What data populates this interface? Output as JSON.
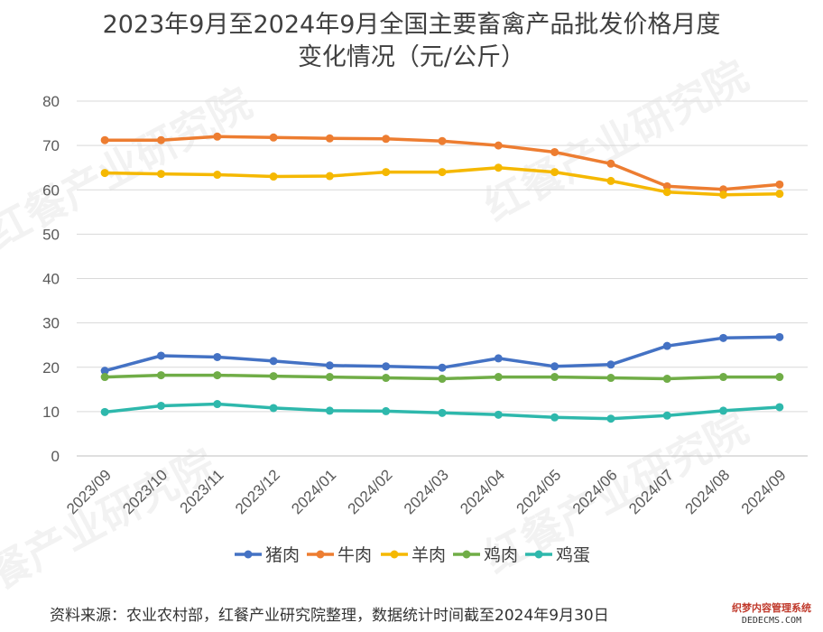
{
  "title": {
    "line1": "2023年9月至2024年9月全国主要畜禽产品批发价格月度",
    "line2": "变化情况（元/公斤）"
  },
  "source": "资料来源：农业农村部，红餐产业研究院整理，数据统计时间截至2024年9月30日",
  "watermark": {
    "text": "红餐产业研究院"
  },
  "corner_stamp": {
    "line1": "织梦内容管理系统",
    "line2": "DEDECMS.COM"
  },
  "chart_data": {
    "type": "line",
    "categories": [
      "2023/09",
      "2023/10",
      "2023/11",
      "2023/12",
      "2024/01",
      "2024/02",
      "2024/03",
      "2024/04",
      "2024/05",
      "2024/06",
      "2024/07",
      "2024/08",
      "2024/09"
    ],
    "ylim": [
      0,
      80
    ],
    "yticks": [
      0,
      10,
      20,
      30,
      40,
      50,
      60,
      70,
      80
    ],
    "grid": true,
    "legend_position": "bottom",
    "series": [
      {
        "name": "猪肉",
        "color": "#4472C4",
        "values": [
          19.2,
          22.6,
          22.3,
          21.4,
          20.4,
          20.2,
          19.9,
          22.0,
          20.2,
          20.6,
          24.8,
          26.6,
          26.8
        ]
      },
      {
        "name": "牛肉",
        "color": "#ED7D31",
        "values": [
          71.2,
          71.2,
          72.0,
          71.8,
          71.6,
          71.5,
          71.0,
          70.0,
          68.5,
          65.9,
          60.8,
          60.1,
          61.2
        ]
      },
      {
        "name": "羊肉",
        "color": "#F5B800",
        "values": [
          63.8,
          63.6,
          63.4,
          63.0,
          63.1,
          64.0,
          64.0,
          65.0,
          64.0,
          62.0,
          59.5,
          58.9,
          59.1
        ]
      },
      {
        "name": "鸡肉",
        "color": "#70AD47",
        "values": [
          17.8,
          18.2,
          18.2,
          18.0,
          17.8,
          17.6,
          17.4,
          17.8,
          17.8,
          17.6,
          17.4,
          17.8,
          17.8
        ]
      },
      {
        "name": "鸡蛋",
        "color": "#2EB8AC",
        "values": [
          9.9,
          11.3,
          11.7,
          10.8,
          10.2,
          10.1,
          9.7,
          9.3,
          8.7,
          8.4,
          9.1,
          10.2,
          11.0
        ]
      }
    ]
  }
}
